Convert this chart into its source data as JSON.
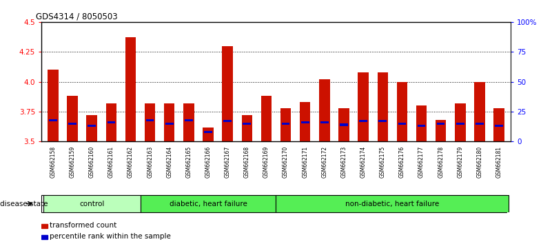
{
  "title": "GDS4314 / 8050503",
  "samples": [
    "GSM662158",
    "GSM662159",
    "GSM662160",
    "GSM662161",
    "GSM662162",
    "GSM662163",
    "GSM662164",
    "GSM662165",
    "GSM662166",
    "GSM662167",
    "GSM662168",
    "GSM662169",
    "GSM662170",
    "GSM662171",
    "GSM662172",
    "GSM662173",
    "GSM662174",
    "GSM662175",
    "GSM662176",
    "GSM662177",
    "GSM662178",
    "GSM662179",
    "GSM662180",
    "GSM662181"
  ],
  "red_values": [
    4.1,
    3.88,
    3.72,
    3.82,
    4.37,
    3.82,
    3.82,
    3.82,
    3.62,
    4.3,
    3.72,
    3.88,
    3.78,
    3.83,
    4.02,
    3.78,
    4.08,
    4.08,
    4.0,
    3.8,
    3.68,
    3.82,
    4.0,
    3.78
  ],
  "blue_pct": [
    18,
    15,
    13,
    16,
    0,
    18,
    15,
    18,
    8,
    17,
    15,
    0,
    15,
    16,
    16,
    14,
    17,
    17,
    15,
    13,
    15,
    15,
    15,
    13
  ],
  "ylim_left": [
    3.5,
    4.5
  ],
  "ylim_right": [
    0,
    100
  ],
  "yticks_left": [
    3.5,
    3.75,
    4.0,
    4.25,
    4.5
  ],
  "yticks_right": [
    0,
    25,
    50,
    75,
    100
  ],
  "ytick_labels_right": [
    "0",
    "25",
    "50",
    "75",
    "100%"
  ],
  "bar_color": "#cc1100",
  "blue_color": "#0000cc",
  "bar_width": 0.55,
  "groups": [
    {
      "label": "control",
      "start": 0,
      "end": 4,
      "color": "#bbffbb"
    },
    {
      "label": "diabetic, heart failure",
      "start": 5,
      "end": 11,
      "color": "#55ee55"
    },
    {
      "label": "non-diabetic, heart failure",
      "start": 12,
      "end": 23,
      "color": "#55ee55"
    }
  ],
  "legend_items": [
    {
      "label": "transformed count",
      "color": "#cc1100"
    },
    {
      "label": "percentile rank within the sample",
      "color": "#0000cc"
    }
  ],
  "disease_state_label": "disease state"
}
